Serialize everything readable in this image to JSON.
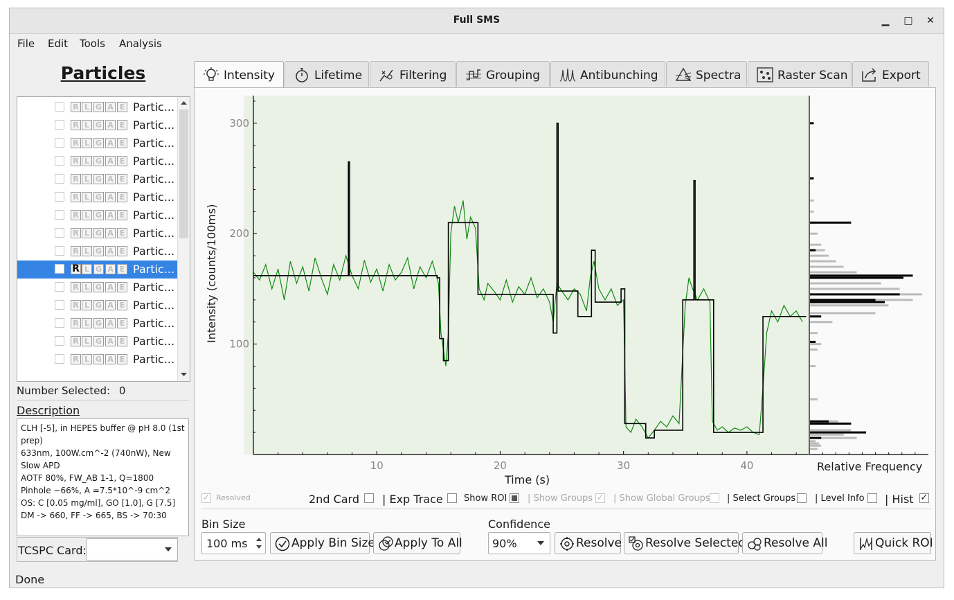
{
  "window": {
    "title": "Full SMS",
    "minimize": "▁",
    "maximize": "□",
    "close": "✕"
  },
  "menu": [
    "File",
    "Edit",
    "Tools",
    "Analysis"
  ],
  "particles": {
    "title": "Particles",
    "tags": [
      "R",
      "L",
      "G",
      "A",
      "E"
    ],
    "selected_index": 9,
    "items": [
      "Partic...",
      "Partic...",
      "Partic...",
      "Partic...",
      "Partic...",
      "Partic...",
      "Partic...",
      "Partic...",
      "Partic...",
      "Partic...",
      "Partic...",
      "Partic...",
      "Partic...",
      "Partic...",
      "Partic..."
    ],
    "number_selected_label": "Number Selected:",
    "number_selected_value": "0"
  },
  "description": {
    "label": "Description",
    "text": "CLH [-5], in HEPES buffer @ pH 8.0 (1st prep)\n633nm, 100W.cm^-2 (740nW), New Slow APD\nAOTF 80%, FW_AB 1-1, Q=1800\nPinhole ~66%, A =7.5*10^-9 cm^2\nOS: C [0.05 mg/ml], GO [1.0], G [7.5]\nDM -> 660, FF -> 665, BS -> 70:30"
  },
  "tcspc": {
    "label": "TCSPC Card:",
    "value": ""
  },
  "tabs": [
    {
      "label": "Intensity",
      "icon": "lightbulb-icon",
      "active": true
    },
    {
      "label": "Lifetime",
      "icon": "stopwatch-icon",
      "active": false
    },
    {
      "label": "Filtering",
      "icon": "filter-icon",
      "active": false
    },
    {
      "label": "Grouping",
      "icon": "grouping-icon",
      "active": false
    },
    {
      "label": "Antibunching",
      "icon": "antibunching-icon",
      "active": false
    },
    {
      "label": "Spectra",
      "icon": "prism-icon",
      "active": false
    },
    {
      "label": "Raster Scan",
      "icon": "raster-icon",
      "active": false
    },
    {
      "label": "Export",
      "icon": "export-icon",
      "active": false
    }
  ],
  "chart_data": {
    "type": "line",
    "xlabel": "Time (s)",
    "ylabel": "Intensity (counts/100ms)",
    "hist_label": "Relative Frequency",
    "xlim": [
      0,
      45
    ],
    "ylim": [
      0,
      325
    ],
    "xticks": [
      10,
      20,
      30,
      40
    ],
    "yticks": [
      100,
      200,
      300
    ],
    "background": "#eaf2e6",
    "colors": {
      "trace": "#108a10",
      "levels": "#000000",
      "hist_all": "#bbbbbb",
      "hist_levels": "#000000"
    },
    "series": [
      {
        "kind": "raw",
        "values": [
          [
            0,
            165
          ],
          [
            0.5,
            158
          ],
          [
            1,
            172
          ],
          [
            1.5,
            150
          ],
          [
            2,
            168
          ],
          [
            2.5,
            140
          ],
          [
            3,
            175
          ],
          [
            3.5,
            155
          ],
          [
            4,
            170
          ],
          [
            4.5,
            148
          ],
          [
            5,
            178
          ],
          [
            5.5,
            160
          ],
          [
            6,
            145
          ],
          [
            6.5,
            172
          ],
          [
            7,
            158
          ],
          [
            7.5,
            180
          ],
          [
            8,
            162
          ],
          [
            8.5,
            150
          ],
          [
            9,
            176
          ],
          [
            9.5,
            156
          ],
          [
            10,
            168
          ],
          [
            10.5,
            148
          ],
          [
            11,
            172
          ],
          [
            11.5,
            158
          ],
          [
            12,
            165
          ],
          [
            12.5,
            178
          ],
          [
            13,
            150
          ],
          [
            13.5,
            170
          ],
          [
            14,
            160
          ],
          [
            14.5,
            175
          ],
          [
            15,
            155
          ],
          [
            15.2,
            110
          ],
          [
            15.4,
            95
          ],
          [
            15.6,
            80
          ],
          [
            15.8,
            110
          ],
          [
            16,
            200
          ],
          [
            16.3,
            225
          ],
          [
            16.6,
            210
          ],
          [
            17,
            230
          ],
          [
            17.3,
            195
          ],
          [
            17.6,
            215
          ],
          [
            18,
            205
          ],
          [
            18.3,
            150
          ],
          [
            18.7,
            140
          ],
          [
            19,
            155
          ],
          [
            19.5,
            148
          ],
          [
            20,
            140
          ],
          [
            20.5,
            158
          ],
          [
            21,
            138
          ],
          [
            21.5,
            152
          ],
          [
            22,
            145
          ],
          [
            22.5,
            160
          ],
          [
            23,
            142
          ],
          [
            23.5,
            150
          ],
          [
            24,
            138
          ],
          [
            24.3,
            120
          ],
          [
            24.6,
            155
          ],
          [
            25,
            148
          ],
          [
            25.5,
            140
          ],
          [
            26,
            150
          ],
          [
            26.5,
            145
          ],
          [
            27,
            130
          ],
          [
            27.3,
            160
          ],
          [
            27.6,
            175
          ],
          [
            28,
            150
          ],
          [
            28.5,
            140
          ],
          [
            29,
            150
          ],
          [
            29.5,
            135
          ],
          [
            30,
            140
          ],
          [
            30.2,
            25
          ],
          [
            30.6,
            20
          ],
          [
            31,
            32
          ],
          [
            31.5,
            25
          ],
          [
            32,
            15
          ],
          [
            32.5,
            22
          ],
          [
            33,
            30
          ],
          [
            33.5,
            25
          ],
          [
            34,
            35
          ],
          [
            34.5,
            28
          ],
          [
            35,
            135
          ],
          [
            35.3,
            160
          ],
          [
            35.6,
            150
          ],
          [
            36,
            140
          ],
          [
            36.5,
            150
          ],
          [
            37,
            138
          ],
          [
            37.2,
            30
          ],
          [
            37.6,
            22
          ],
          [
            38,
            25
          ],
          [
            38.5,
            20
          ],
          [
            39,
            24
          ],
          [
            39.5,
            22
          ],
          [
            40,
            25
          ],
          [
            40.5,
            20
          ],
          [
            41,
            18
          ],
          [
            41.3,
            60
          ],
          [
            41.6,
            110
          ],
          [
            42,
            130
          ],
          [
            42.5,
            120
          ],
          [
            43,
            135
          ],
          [
            43.5,
            125
          ],
          [
            44,
            130
          ],
          [
            44.5,
            120
          ]
        ]
      },
      {
        "kind": "levels",
        "values": [
          [
            0,
            162
          ],
          [
            7.7,
            162
          ],
          [
            7.7,
            265
          ],
          [
            7.8,
            265
          ],
          [
            7.8,
            162
          ],
          [
            14.9,
            162
          ],
          [
            14.9,
            160
          ],
          [
            15.1,
            160
          ],
          [
            15.1,
            105
          ],
          [
            15.4,
            105
          ],
          [
            15.4,
            85
          ],
          [
            15.8,
            85
          ],
          [
            15.8,
            210
          ],
          [
            18.2,
            210
          ],
          [
            18.2,
            145
          ],
          [
            23.8,
            145
          ],
          [
            23.8,
            145
          ],
          [
            24.3,
            145
          ],
          [
            24.3,
            110
          ],
          [
            24.6,
            110
          ],
          [
            24.6,
            300
          ],
          [
            24.7,
            300
          ],
          [
            24.7,
            148
          ],
          [
            26.3,
            148
          ],
          [
            26.3,
            125
          ],
          [
            27.4,
            125
          ],
          [
            27.4,
            185
          ],
          [
            27.7,
            185
          ],
          [
            27.7,
            138
          ],
          [
            29.8,
            138
          ],
          [
            29.8,
            150
          ],
          [
            30.1,
            150
          ],
          [
            30.1,
            28
          ],
          [
            31.8,
            28
          ],
          [
            31.8,
            15
          ],
          [
            32.5,
            15
          ],
          [
            32.5,
            22
          ],
          [
            34.8,
            22
          ],
          [
            34.8,
            140
          ],
          [
            35.7,
            140
          ],
          [
            35.7,
            248
          ],
          [
            35.8,
            248
          ],
          [
            35.8,
            140
          ],
          [
            37.3,
            140
          ],
          [
            37.3,
            20
          ],
          [
            41.3,
            20
          ],
          [
            41.3,
            125
          ],
          [
            44.8,
            125
          ]
        ]
      }
    ],
    "histogram": {
      "bins_all": [
        [
          5,
          4
        ],
        [
          8,
          6
        ],
        [
          10,
          5
        ],
        [
          12,
          3
        ],
        [
          15,
          25
        ],
        [
          18,
          18
        ],
        [
          22,
          22
        ],
        [
          28,
          20
        ],
        [
          30,
          15
        ],
        [
          50,
          4
        ],
        [
          80,
          3
        ],
        [
          95,
          4
        ],
        [
          100,
          6
        ],
        [
          110,
          4
        ],
        [
          120,
          12
        ],
        [
          128,
          35
        ],
        [
          135,
          42
        ],
        [
          140,
          55
        ],
        [
          145,
          60
        ],
        [
          150,
          48
        ],
        [
          155,
          38
        ],
        [
          160,
          30
        ],
        [
          165,
          25
        ],
        [
          170,
          18
        ],
        [
          175,
          14
        ],
        [
          180,
          10
        ],
        [
          185,
          8
        ],
        [
          190,
          6
        ],
        [
          200,
          4
        ],
        [
          210,
          3
        ],
        [
          220,
          2
        ],
        [
          230,
          2
        ]
      ],
      "bins_levels": [
        [
          15,
          6
        ],
        [
          20,
          30
        ],
        [
          28,
          22
        ],
        [
          30,
          10
        ],
        [
          102,
          3
        ],
        [
          125,
          6
        ],
        [
          138,
          40
        ],
        [
          140,
          35
        ],
        [
          145,
          48
        ],
        [
          160,
          50
        ],
        [
          162,
          55
        ],
        [
          185,
          3
        ],
        [
          210,
          22
        ],
        [
          250,
          2
        ],
        [
          300,
          2
        ]
      ]
    }
  },
  "options": {
    "resolved": "Resolved",
    "second_card": "2nd Card",
    "exp_trace": "| Exp Trace",
    "show_roi": "Show ROI",
    "show_groups": "| Show Groups",
    "show_global_groups": "| Show Global Groups",
    "select_groups": "| Select Groups",
    "level_info": "| Level Info",
    "hist": "| Hist"
  },
  "controls": {
    "bin_size_label": "Bin Size",
    "bin_size_value": "100 ms",
    "apply_bin_size": "Apply Bin Size",
    "apply_to_all": "Apply To All",
    "confidence_label": "Confidence",
    "confidence_value": "90%",
    "resolve": "Resolve",
    "resolve_selected": "Resolve Selected",
    "resolve_all": "Resolve All",
    "quick_roi": "Quick ROI"
  },
  "status": "Done"
}
